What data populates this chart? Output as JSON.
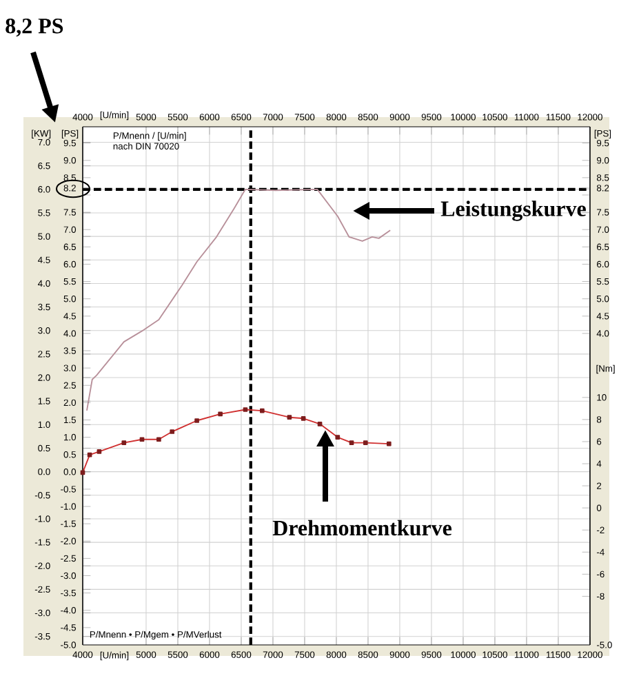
{
  "chart_data": {
    "type": "line",
    "xlabel": "[U/min]",
    "ylabel": "[KW]",
    "y2label": "[PS]",
    "y3label": "[Nm]",
    "x2label": "[U/min]",
    "xlim": [
      4000,
      12000
    ],
    "xticks": [
      4000,
      5000,
      5500,
      6000,
      6500,
      7000,
      7500,
      8000,
      8500,
      9000,
      9500,
      10000,
      10500,
      11000,
      11500,
      12000
    ],
    "x2lim": [
      4000,
      12000
    ],
    "x2ticks": [
      4000,
      5000,
      5500,
      6000,
      6500,
      7000,
      7500,
      8000,
      8500,
      9000,
      9500,
      10000,
      10500,
      11000,
      11500,
      12000
    ],
    "ylim": [
      -3.68,
      7.33
    ],
    "yticks": [
      {
        "value": -3.5,
        "label": "-3.5"
      },
      {
        "value": -3.0,
        "label": "-3.0"
      },
      {
        "value": -2.5,
        "label": "-2.5"
      },
      {
        "value": -2.0,
        "label": "-2.0"
      },
      {
        "value": -1.5,
        "label": "-1.5"
      },
      {
        "value": -1.0,
        "label": "-1.0"
      },
      {
        "value": -0.5,
        "label": "-0.5"
      },
      {
        "value": 0.0,
        "label": "0.0"
      },
      {
        "value": 0.5,
        "label": "0.5"
      },
      {
        "value": 1.0,
        "label": "1.0"
      },
      {
        "value": 1.5,
        "label": "1.5"
      },
      {
        "value": 2.0,
        "label": "2.0"
      },
      {
        "value": 2.5,
        "label": "2.5"
      },
      {
        "value": 3.0,
        "label": "3.0"
      },
      {
        "value": 3.5,
        "label": "3.5"
      },
      {
        "value": 4.0,
        "label": "4.0"
      },
      {
        "value": 4.5,
        "label": "4.5"
      },
      {
        "value": 5.0,
        "label": "5.0"
      },
      {
        "value": 5.5,
        "label": "5.5"
      },
      {
        "value": 6.0,
        "label": "6.0"
      },
      {
        "value": 6.5,
        "label": "6.5"
      },
      {
        "value": 7.0,
        "label": "7.0"
      }
    ],
    "y2lim": [
      -5.0,
      9.97
    ],
    "y2ticks": [
      {
        "value": -5.0,
        "label": "-5.0"
      },
      {
        "value": -4.5,
        "label": "-4.5"
      },
      {
        "value": -4.0,
        "label": "-4.0"
      },
      {
        "value": -3.5,
        "label": "-3.5"
      },
      {
        "value": -3.0,
        "label": "-3.0"
      },
      {
        "value": -2.5,
        "label": "-2.5"
      },
      {
        "value": -2.0,
        "label": "-2.0"
      },
      {
        "value": -1.5,
        "label": "-1.5"
      },
      {
        "value": -1.0,
        "label": "-1.0"
      },
      {
        "value": -0.5,
        "label": "-0.5"
      },
      {
        "value": 0.0,
        "label": "0.0"
      },
      {
        "value": 0.5,
        "label": "0.5"
      },
      {
        "value": 1.0,
        "label": "1.0"
      },
      {
        "value": 1.5,
        "label": "1.5"
      },
      {
        "value": 2.0,
        "label": "2.0"
      },
      {
        "value": 2.5,
        "label": "2.5"
      },
      {
        "value": 3.0,
        "label": "3.0"
      },
      {
        "value": 3.5,
        "label": "3.5"
      },
      {
        "value": 4.0,
        "label": "4.0"
      },
      {
        "value": 4.5,
        "label": "4.5"
      },
      {
        "value": 5.0,
        "label": "5.0"
      },
      {
        "value": 5.5,
        "label": "5.5"
      },
      {
        "value": 6.0,
        "label": "6.0"
      },
      {
        "value": 6.5,
        "label": "6.5"
      },
      {
        "value": 7.0,
        "label": "7.0"
      },
      {
        "value": 7.5,
        "label": "7.5"
      },
      {
        "value": 8.0,
        "label": null
      },
      {
        "value": 8.2,
        "label": "8.2"
      },
      {
        "value": 8.5,
        "label": "8.5"
      },
      {
        "value": 9.0,
        "label": "9.0"
      },
      {
        "value": 9.5,
        "label": "9.5"
      }
    ],
    "y3lim": [
      -12.4,
      34.5
    ],
    "y3ticks": [
      -8,
      -6,
      -4,
      -2,
      0,
      2,
      4,
      6,
      8,
      10
    ],
    "grid": true,
    "series": [
      {
        "color": "#b8909a",
        "x": [
          4065,
          4150,
          4220,
          4650,
          4935,
          5200,
          5565,
          5800,
          6110,
          6390,
          6565,
          7040,
          7700,
          8020,
          8200,
          8410,
          8565,
          8670,
          8850
        ],
        "values": [
          1.3,
          1.96,
          2.05,
          2.76,
          2.99,
          3.23,
          3.96,
          4.46,
          4.99,
          5.6,
          6.0,
          5.98,
          6.0,
          5.43,
          4.99,
          4.9,
          4.99,
          4.96,
          5.13
        ]
      },
      {
        "color": "#d03030",
        "axis": "y3",
        "marker": "square",
        "x": [
          4000,
          4110,
          4260,
          4650,
          4935,
          5200,
          5410,
          5800,
          6170,
          6565,
          6830,
          7260,
          7480,
          7740,
          8020,
          8240,
          8460,
          8830
        ],
        "values": [
          3.2,
          4.8,
          5.1,
          5.9,
          6.2,
          6.2,
          6.9,
          7.9,
          8.5,
          8.9,
          8.8,
          8.2,
          8.1,
          7.6,
          6.4,
          5.9,
          5.9,
          5.8
        ]
      }
    ],
    "ref_lines": [
      {
        "axis": "y",
        "value": 6.0,
        "color": "#000000",
        "line_style": "dashed"
      },
      {
        "axis": "x",
        "value": 6650,
        "color": "#000000",
        "line_style": "dashed"
      }
    ],
    "annotations": [
      "8,2 PS",
      "Leistungskurve",
      "Drehmomentkurve",
      "P/Mnenn / [U/min]",
      "nach DIN 70020",
      "P/Mnenn • P/Mgem • P/MVerlust"
    ]
  }
}
